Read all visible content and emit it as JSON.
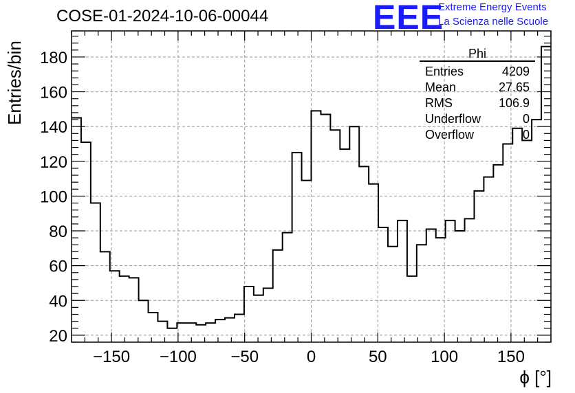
{
  "title": "COSE-01-2024-10-06-00044",
  "logo": {
    "mark": "EEE",
    "line1": "Extreme Energy Events",
    "line2": "La Scienza nelle Scuole",
    "color": "#1a1aff"
  },
  "stats": {
    "title": "Phi",
    "rows": [
      {
        "label": "Entries",
        "value": "4209"
      },
      {
        "label": "Mean",
        "value": "27.65"
      },
      {
        "label": "RMS",
        "value": "106.9"
      },
      {
        "label": "Underflow",
        "value": "0"
      },
      {
        "label": "Overflow",
        "value": "0"
      }
    ]
  },
  "chart_data": {
    "type": "histogram",
    "title": "COSE-01-2024-10-06-00044",
    "xlabel": "ϕ [°]",
    "ylabel": "Entries/bin",
    "xlim": [
      -180,
      180
    ],
    "ylim": [
      16,
      195
    ],
    "bin_width": 7.2,
    "grid": true,
    "x_ticks": [
      -150,
      -100,
      -50,
      0,
      50,
      100,
      150
    ],
    "y_ticks": [
      20,
      40,
      60,
      80,
      100,
      120,
      140,
      160,
      180
    ],
    "values": [
      145,
      131,
      96,
      68,
      57,
      54,
      53,
      40,
      33,
      28,
      24,
      27,
      27,
      26,
      27,
      29,
      30,
      32,
      48,
      43,
      47,
      69,
      79,
      125,
      109,
      149,
      147,
      138,
      127,
      140,
      117,
      107,
      82,
      71,
      86,
      54,
      72,
      81,
      76,
      86,
      80,
      87,
      103,
      111,
      118,
      130,
      139,
      132,
      144,
      186
    ],
    "line_color": "#000000"
  }
}
